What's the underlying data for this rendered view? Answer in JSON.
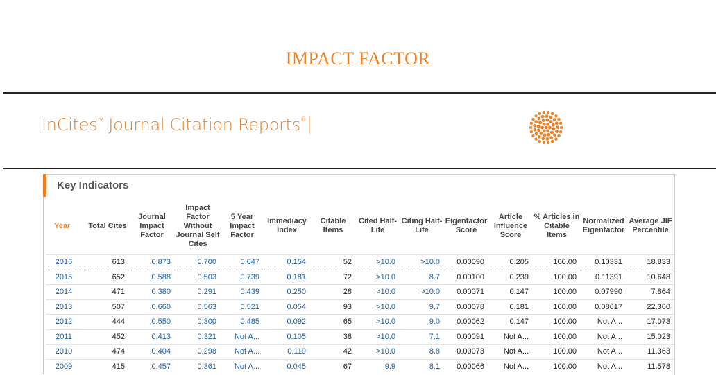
{
  "page": {
    "title": "IMPACT FACTOR"
  },
  "header": {
    "brand_incites": "InCites",
    "brand_tm": "™",
    "brand_product": " Journal Citation Reports",
    "brand_reg": "®",
    "logo_icon": "thomson-reuters-logo-icon",
    "accent_color": "#e8822c"
  },
  "panel": {
    "title": "Key Indicators"
  },
  "table": {
    "columns": [
      "Year",
      "Total Cites",
      "Journal Impact Factor",
      "Impact Factor Without Journal Self Cites",
      "5 Year Impact Factor",
      "Immediacy Index",
      "Citable Items",
      "Cited Half-Life",
      "Citing Half-Life",
      "Eigenfactor Score",
      "Article Influence Score",
      "% Articles in Citable Items",
      "Normalized Eigenfactor",
      "Average JIF Percentile"
    ],
    "rows": [
      [
        "2016",
        "613",
        "0.873",
        "0.700",
        "0.647",
        "0.154",
        "52",
        ">10.0",
        ">10.0",
        "0.00090",
        "0.205",
        "100.00",
        "0.10331",
        "18.833"
      ],
      [
        "2015",
        "652",
        "0.588",
        "0.503",
        "0.739",
        "0.181",
        "72",
        ">10.0",
        "8.7",
        "0.00100",
        "0.239",
        "100.00",
        "0.11391",
        "10.648"
      ],
      [
        "2014",
        "471",
        "0.380",
        "0.291",
        "0.439",
        "0.250",
        "28",
        ">10.0",
        ">10.0",
        "0.00071",
        "0.147",
        "100.00",
        "0.07990",
        "7.864"
      ],
      [
        "2013",
        "507",
        "0.660",
        "0.563",
        "0.521",
        "0.054",
        "93",
        ">10.0",
        "9.7",
        "0.00078",
        "0.181",
        "100.00",
        "0.08617",
        "22.360"
      ],
      [
        "2012",
        "444",
        "0.550",
        "0.300",
        "0.485",
        "0.092",
        "65",
        ">10.0",
        "9.0",
        "0.00062",
        "0.147",
        "100.00",
        "Not A...",
        "17.073"
      ],
      [
        "2011",
        "452",
        "0.413",
        "0.321",
        "Not A...",
        "0.105",
        "38",
        ">10.0",
        "7.1",
        "0.00091",
        "Not A...",
        "100.00",
        "Not A...",
        "15.023"
      ],
      [
        "2010",
        "474",
        "0.404",
        "0.298",
        "Not A...",
        "0.119",
        "42",
        ">10.0",
        "8.8",
        "0.00073",
        "Not A...",
        "100.00",
        "Not A...",
        "11.363"
      ],
      [
        "2009",
        "415",
        "0.457",
        "0.361",
        "Not A...",
        "0.045",
        "67",
        "9.9",
        "8.1",
        "0.00066",
        "Not A...",
        "100.00",
        "Not A...",
        "11.578"
      ]
    ],
    "selected_row": 1
  }
}
